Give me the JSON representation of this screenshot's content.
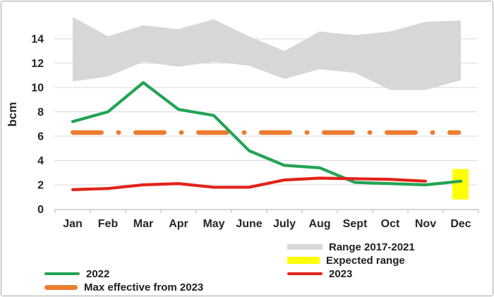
{
  "figure": {
    "background": "#ffffff",
    "border_color": "#a9a9a9"
  },
  "legend": [
    {
      "label": "Range 2017-2021",
      "color": "#d7d7d7",
      "shape": "area"
    },
    {
      "label": "Expected range",
      "color": "#ffff00",
      "shape": "box"
    },
    {
      "label": "2022",
      "color": "#23a455",
      "shape": "line"
    },
    {
      "label": "2023",
      "color": "#e2231a",
      "shape": "line"
    },
    {
      "label": "Max effective from 2023",
      "color": "#ed7d31",
      "shape": "line-thick"
    }
  ],
  "chart_data": {
    "type": "line",
    "title": "",
    "xlabel": "",
    "ylabel": "bcm",
    "ylim": [
      0,
      16
    ],
    "yticks": [
      0,
      2,
      4,
      6,
      8,
      10,
      12,
      14
    ],
    "grid": true,
    "legend_position": "bottom",
    "categories": [
      "Jan",
      "Feb",
      "Mar",
      "Apr",
      "May",
      "June",
      "July",
      "Aug",
      "Sept",
      "Oct",
      "Nov",
      "Dec"
    ],
    "series": [
      {
        "name": "Range 2017-2021",
        "type": "band",
        "color": "#d7d7d7",
        "low": [
          10.5,
          10.9,
          12.1,
          11.7,
          12.1,
          11.8,
          10.7,
          11.5,
          11.2,
          9.8,
          9.8,
          10.6
        ],
        "high": [
          15.8,
          14.2,
          15.1,
          14.8,
          15.6,
          14.2,
          13.0,
          14.6,
          14.3,
          14.6,
          15.4,
          15.5
        ]
      },
      {
        "name": "2022",
        "type": "line",
        "color": "#23a455",
        "values": [
          7.2,
          8.0,
          10.4,
          8.2,
          7.7,
          4.8,
          3.6,
          3.4,
          2.2,
          2.1,
          2.0,
          2.3
        ]
      },
      {
        "name": "2023",
        "type": "line",
        "color": "#e2231a",
        "values": [
          1.6,
          1.7,
          2.0,
          2.1,
          1.8,
          1.8,
          2.4,
          2.55,
          2.5,
          2.45,
          2.3,
          null
        ]
      },
      {
        "name": "Max effective from 2023",
        "type": "hline-dashdot",
        "color": "#ed7d31",
        "value": 6.3
      },
      {
        "name": "Expected range",
        "type": "box",
        "color": "#ffff00",
        "month": "Dec",
        "low": 0.8,
        "high": 3.3
      }
    ]
  }
}
